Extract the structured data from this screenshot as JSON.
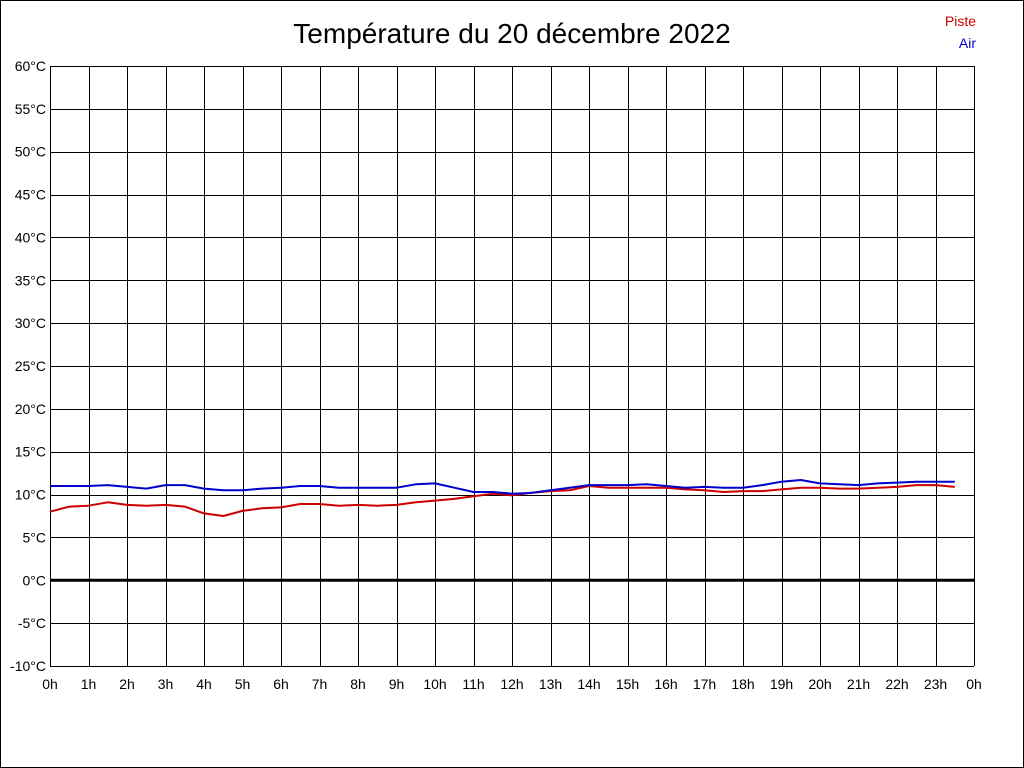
{
  "chart_data": {
    "type": "line",
    "title": "Température du 20 décembre 2022",
    "xlabel": "",
    "ylabel": "",
    "x_tick_labels": [
      "0h",
      "1h",
      "2h",
      "3h",
      "4h",
      "5h",
      "6h",
      "7h",
      "8h",
      "9h",
      "10h",
      "11h",
      "12h",
      "13h",
      "14h",
      "15h",
      "16h",
      "17h",
      "18h",
      "19h",
      "20h",
      "21h",
      "22h",
      "23h",
      "0h"
    ],
    "y_tick_labels": [
      "-10°C",
      "-5°C",
      "0°C",
      "5°C",
      "10°C",
      "15°C",
      "20°C",
      "25°C",
      "30°C",
      "35°C",
      "40°C",
      "45°C",
      "50°C",
      "55°C",
      "60°C"
    ],
    "xlim": [
      0,
      24
    ],
    "ylim": [
      -10,
      60
    ],
    "grid": true,
    "legend_position": "top-right",
    "zero_line": 0,
    "series": [
      {
        "name": "Piste",
        "color": "#cc0000",
        "x": [
          0,
          0.5,
          1,
          1.5,
          2,
          2.5,
          3,
          3.5,
          4,
          4.5,
          5,
          5.5,
          6,
          6.5,
          7,
          7.5,
          8,
          8.5,
          9,
          9.5,
          10,
          10.5,
          11,
          11.5,
          12,
          12.5,
          13,
          13.5,
          14,
          14.5,
          15,
          15.5,
          16,
          16.5,
          17,
          17.5,
          18,
          18.5,
          19,
          19.5,
          20,
          20.5,
          21,
          21.5,
          22,
          22.5,
          23,
          23.5
        ],
        "values": [
          8.0,
          8.6,
          8.7,
          9.1,
          8.8,
          8.7,
          8.8,
          8.6,
          7.8,
          7.5,
          8.1,
          8.4,
          8.5,
          8.9,
          8.9,
          8.7,
          8.8,
          8.7,
          8.8,
          9.1,
          9.3,
          9.5,
          9.8,
          10.1,
          9.9,
          10.2,
          10.4,
          10.5,
          11.0,
          10.8,
          10.8,
          10.8,
          10.8,
          10.6,
          10.5,
          10.3,
          10.4,
          10.4,
          10.6,
          10.8,
          10.8,
          10.7,
          10.7,
          10.8,
          10.9,
          11.1,
          11.1,
          10.9
        ]
      },
      {
        "name": "Air",
        "color": "#0000cc",
        "x": [
          0,
          0.5,
          1,
          1.5,
          2,
          2.5,
          3,
          3.5,
          4,
          4.5,
          5,
          5.5,
          6,
          6.5,
          7,
          7.5,
          8,
          8.5,
          9,
          9.5,
          10,
          10.5,
          11,
          11.5,
          12,
          12.5,
          13,
          13.5,
          14,
          14.5,
          15,
          15.5,
          16,
          16.5,
          17,
          17.5,
          18,
          18.5,
          19,
          19.5,
          20,
          20.5,
          21,
          21.5,
          22,
          22.5,
          23,
          23.5
        ],
        "values": [
          11.0,
          11.0,
          11.0,
          11.1,
          10.9,
          10.7,
          11.1,
          11.1,
          10.7,
          10.5,
          10.5,
          10.7,
          10.8,
          11.0,
          11.0,
          10.8,
          10.8,
          10.8,
          10.8,
          11.2,
          11.3,
          10.8,
          10.3,
          10.3,
          10.1,
          10.2,
          10.5,
          10.8,
          11.1,
          11.1,
          11.1,
          11.2,
          11.0,
          10.8,
          10.9,
          10.8,
          10.8,
          11.1,
          11.5,
          11.7,
          11.3,
          11.2,
          11.1,
          11.3,
          11.4,
          11.5,
          11.5,
          11.5
        ]
      }
    ]
  }
}
